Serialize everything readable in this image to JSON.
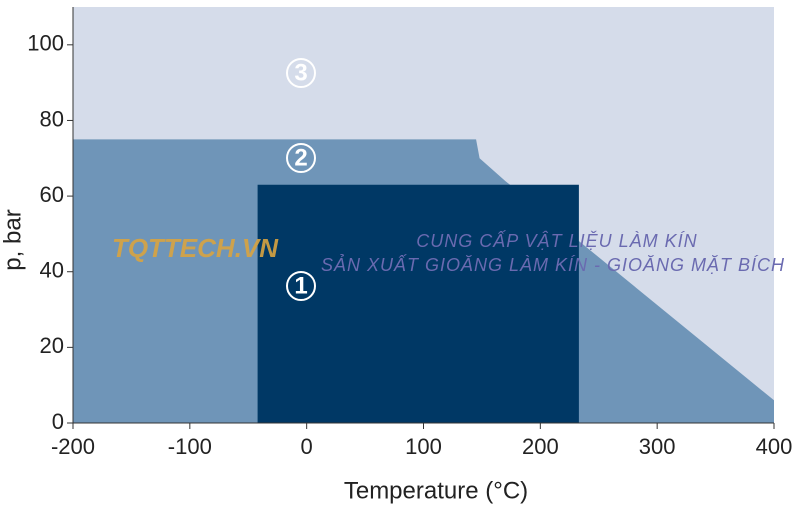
{
  "chart_data": {
    "type": "area",
    "xlabel": "Temperature (°C)",
    "ylabel": "p, bar",
    "xlim": [
      -200,
      400
    ],
    "ylim": [
      0,
      110
    ],
    "xticks": [
      -200,
      -100,
      0,
      100,
      200,
      300,
      400
    ],
    "yticks": [
      0,
      20,
      40,
      60,
      80,
      100
    ],
    "series": [
      {
        "name": "3",
        "color": "#d5dcea",
        "x": [
          -200,
          400
        ],
        "values": [
          110,
          110
        ]
      },
      {
        "name": "2",
        "color": "#6f95b8",
        "x": [
          -200,
          145,
          148,
          170,
          400
        ],
        "values": [
          75,
          75,
          70,
          64,
          6
        ]
      },
      {
        "name": "1",
        "color": "#003865",
        "x": [
          -42,
          233
        ],
        "values": [
          63,
          63
        ]
      }
    ],
    "annotations": [
      "TQTTECH.VN",
      "CUNG CẤP VẬT LIỆU LÀM KÍN",
      "SẢN XUẤT GIOĂNG LÀM KÍN - GIOĂNG MẶT BÍCH"
    ]
  }
}
